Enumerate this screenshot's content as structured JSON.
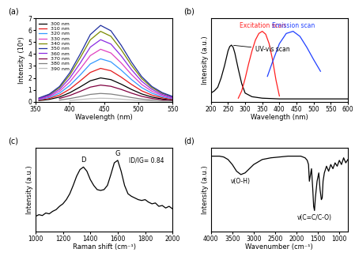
{
  "chart_data": [
    {
      "type": "line",
      "title": "(a)",
      "x_label": "Wavelength (nm)",
      "y_label": "Intensity (10⁵)",
      "xlim": [
        350,
        550
      ],
      "xticks": [
        350,
        400,
        450,
        500,
        550
      ],
      "ylim": [
        0,
        7
      ],
      "yticks": [
        0,
        1,
        2,
        3,
        4,
        5,
        6,
        7
      ],
      "legend": "upper left",
      "x": [
        355,
        370,
        385,
        400,
        415,
        430,
        445,
        460,
        475,
        490,
        505,
        520,
        535,
        550
      ],
      "series": [
        {
          "name": "300 nm",
          "color": "#000000",
          "values": [
            0.1,
            0.2,
            0.4,
            0.76,
            1.24,
            1.76,
            2.0,
            1.86,
            1.48,
            1.04,
            0.66,
            0.4,
            0.24,
            0.14
          ]
        },
        {
          "name": "310 nm",
          "color": "#e41a1c",
          "values": [
            0.14,
            0.28,
            0.56,
            1.06,
            1.74,
            2.46,
            2.8,
            2.6,
            2.07,
            1.46,
            0.92,
            0.56,
            0.34,
            0.2
          ]
        },
        {
          "name": "320 nm",
          "color": "#3399ff",
          "values": [
            0.18,
            0.36,
            0.72,
            1.37,
            2.23,
            3.17,
            3.6,
            3.35,
            2.66,
            1.87,
            1.19,
            0.72,
            0.43,
            0.25
          ]
        },
        {
          "name": "330 nm",
          "color": "#e040c0",
          "values": [
            0.22,
            0.44,
            0.88,
            1.67,
            2.73,
            3.87,
            4.4,
            4.09,
            3.26,
            2.29,
            1.45,
            0.88,
            0.53,
            0.31
          ]
        },
        {
          "name": "340 nm",
          "color": "#7a8a00",
          "values": [
            0.3,
            0.59,
            1.18,
            2.24,
            3.66,
            5.19,
            5.9,
            5.49,
            4.37,
            3.07,
            1.95,
            1.18,
            0.71,
            0.41
          ]
        },
        {
          "name": "350 nm",
          "color": "#1f2f9f",
          "values": [
            0.32,
            0.64,
            1.28,
            2.43,
            3.97,
            5.63,
            6.4,
            5.95,
            4.74,
            3.33,
            2.11,
            1.28,
            0.77,
            0.45
          ]
        },
        {
          "name": "360 nm",
          "color": "#8a2be2",
          "values": [
            0.26,
            0.52,
            1.04,
            1.98,
            3.22,
            4.58,
            5.2,
            4.84,
            3.85,
            2.7,
            1.72,
            1.04,
            0.62,
            0.36
          ]
        },
        {
          "name": "370 nm",
          "color": "#800040",
          "values": [
            null,
            null,
            0.28,
            0.53,
            0.87,
            1.23,
            1.4,
            1.3,
            1.04,
            0.73,
            0.46,
            0.28,
            0.17,
            0.1
          ]
        },
        {
          "name": "380 nm",
          "color": "#808080",
          "values": [
            null,
            null,
            0.14,
            0.27,
            0.43,
            0.62,
            0.7,
            0.65,
            0.52,
            0.36,
            0.23,
            0.14,
            0.08,
            0.05
          ]
        },
        {
          "name": "390 nm",
          "color": "#c0c0c0",
          "values": [
            null,
            null,
            null,
            0.11,
            0.19,
            0.26,
            0.3,
            0.28,
            0.22,
            0.16,
            0.1,
            0.06,
            0.04,
            0.02
          ]
        }
      ]
    },
    {
      "type": "line",
      "title": "(b)",
      "x_label": "Wavelength (nm)",
      "y_label": "Intensity (a.u.)",
      "xlim": [
        200,
        600
      ],
      "xticks": [
        200,
        250,
        300,
        350,
        400,
        450,
        500,
        550,
        600
      ],
      "ylim": [
        0,
        1.15
      ],
      "yticks": [],
      "tick_labels": "x",
      "series": [
        {
          "name": "UV-vis scan",
          "color": "#000000",
          "x": [
            200,
            210,
            220,
            230,
            240,
            250,
            255,
            260,
            265,
            270,
            280,
            290,
            300,
            320,
            350,
            400,
            450,
            500,
            550,
            600
          ],
          "values": [
            0.12,
            0.15,
            0.2,
            0.33,
            0.5,
            0.7,
            0.76,
            0.78,
            0.75,
            0.67,
            0.45,
            0.25,
            0.12,
            0.07,
            0.05,
            0.04,
            0.04,
            0.04,
            0.04,
            0.04
          ]
        },
        {
          "name": "Excitation scan",
          "color": "#ff2020",
          "x": [
            280,
            290,
            300,
            310,
            320,
            330,
            340,
            350,
            360,
            370,
            380,
            390,
            400
          ],
          "values": [
            0.05,
            0.15,
            0.32,
            0.52,
            0.7,
            0.85,
            0.94,
            0.97,
            0.93,
            0.8,
            0.58,
            0.3,
            0.08
          ]
        },
        {
          "name": "Emission scan",
          "color": "#2040ff",
          "x": [
            365,
            380,
            400,
            420,
            440,
            460,
            480,
            500,
            520
          ],
          "values": [
            0.35,
            0.55,
            0.8,
            0.94,
            0.97,
            0.9,
            0.75,
            0.58,
            0.42
          ]
        }
      ]
    },
    {
      "type": "line",
      "title": "(c)",
      "x_label": "Raman shift (cm⁻¹)",
      "y_label": "Intensity (a.u.)",
      "xlim": [
        1000,
        2000
      ],
      "xticks": [
        1000,
        1200,
        1400,
        1600,
        1800,
        2000
      ],
      "ylim": [
        0,
        1
      ],
      "yticks": [],
      "tick_labels": "x",
      "annotations": [
        {
          "text": "D",
          "x": 1350
        },
        {
          "text": "G",
          "x": 1600
        }
      ],
      "annotation_text": "ID/IG= 0.84",
      "series": [
        {
          "color": "#000000",
          "x": [
            1000,
            1025,
            1050,
            1075,
            1100,
            1125,
            1150,
            1175,
            1200,
            1225,
            1250,
            1275,
            1300,
            1325,
            1350,
            1375,
            1400,
            1425,
            1450,
            1475,
            1500,
            1525,
            1550,
            1575,
            1600,
            1625,
            1650,
            1675,
            1700,
            1725,
            1750,
            1775,
            1800,
            1825,
            1850,
            1875,
            1900,
            1925,
            1950,
            1975,
            2000
          ],
          "values": [
            0.18,
            0.2,
            0.19,
            0.22,
            0.21,
            0.24,
            0.26,
            0.3,
            0.33,
            0.38,
            0.45,
            0.55,
            0.66,
            0.74,
            0.77,
            0.72,
            0.62,
            0.55,
            0.5,
            0.49,
            0.5,
            0.55,
            0.68,
            0.82,
            0.85,
            0.72,
            0.55,
            0.45,
            0.42,
            0.4,
            0.38,
            0.37,
            0.38,
            0.35,
            0.33,
            0.34,
            0.3,
            0.31,
            0.28,
            0.3,
            0.27
          ]
        }
      ]
    },
    {
      "type": "line",
      "title": "(d)",
      "x_label": "Wavenumber (cm⁻¹)",
      "y_label": "Intensity (a.u.)",
      "xlim": [
        4000,
        800
      ],
      "xticks": [
        4000,
        3500,
        3000,
        2500,
        2000,
        1500,
        1000
      ],
      "ylim": [
        0,
        1
      ],
      "yticks": [],
      "tick_labels": "x",
      "annotations": [
        {
          "text": "ν(O-H)",
          "x": 3300
        },
        {
          "text": "ν(C=C/C-O)",
          "x": 1580
        }
      ],
      "series": [
        {
          "color": "#000000",
          "x": [
            4000,
            3800,
            3700,
            3600,
            3500,
            3400,
            3300,
            3200,
            3100,
            3000,
            2900,
            2800,
            2600,
            2400,
            2200,
            2000,
            1900,
            1800,
            1750,
            1720,
            1700,
            1650,
            1620,
            1600,
            1580,
            1560,
            1520,
            1480,
            1450,
            1420,
            1400,
            1380,
            1350,
            1300,
            1250,
            1200,
            1150,
            1100,
            1050,
            1000,
            950,
            900,
            850,
            800
          ],
          "values": [
            0.9,
            0.9,
            0.89,
            0.86,
            0.8,
            0.72,
            0.68,
            0.7,
            0.75,
            0.8,
            0.83,
            0.86,
            0.88,
            0.89,
            0.9,
            0.9,
            0.9,
            0.88,
            0.85,
            0.8,
            0.6,
            0.75,
            0.5,
            0.3,
            0.25,
            0.4,
            0.6,
            0.7,
            0.5,
            0.38,
            0.4,
            0.6,
            0.7,
            0.78,
            0.72,
            0.8,
            0.75,
            0.82,
            0.78,
            0.85,
            0.8,
            0.88,
            0.82,
            0.86
          ]
        }
      ]
    }
  ]
}
